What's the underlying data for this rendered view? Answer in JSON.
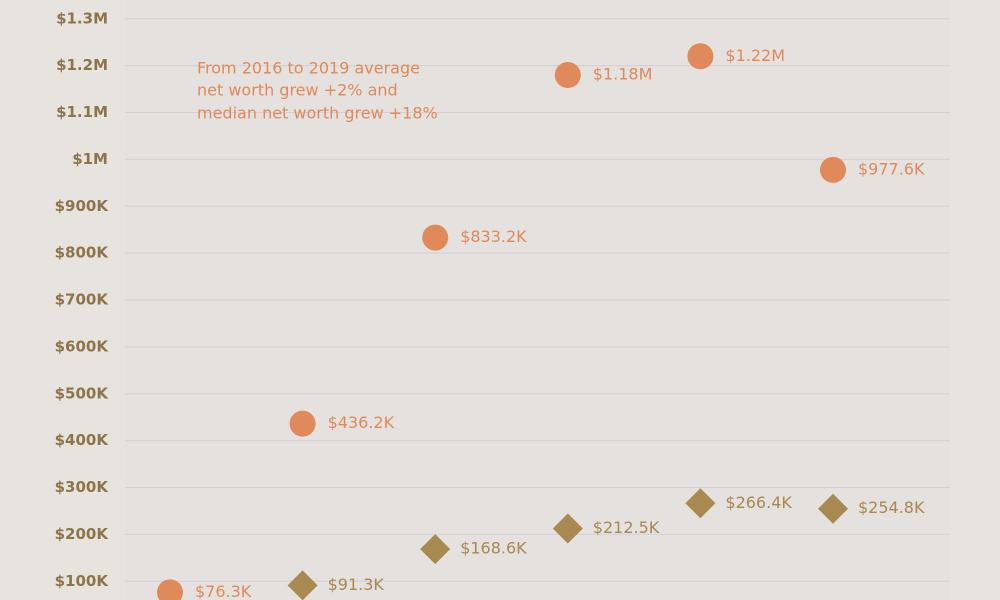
{
  "chart_data": {
    "type": "dumbbell",
    "annotation": [
      "From 2016 to 2019 average",
      "net worth grew +2% and",
      "median net worth grew +18%"
    ],
    "categories": [
      null,
      null,
      null,
      null,
      null,
      null
    ],
    "series": [
      {
        "color": "#e0895a",
        "values": [
          76300,
          436200,
          833200,
          1180000,
          1220000,
          977600
        ],
        "value_labels": [
          "$76.3K",
          "$436.2K",
          "$833.2K",
          "$1.18M",
          "$1.22M",
          "$977.6K"
        ]
      },
      {
        "color": "#a8894f",
        "values": [
          null,
          91300,
          168600,
          212500,
          266400,
          254800
        ],
        "value_labels": [
          null,
          "$91.3K",
          "$168.6K",
          "$212.5K",
          "$266.4K",
          "$254.8K"
        ]
      }
    ],
    "ylim": [
      60000,
      1340000
    ],
    "yticks": [
      {
        "value": 100000,
        "label": "$100K"
      },
      {
        "value": 200000,
        "label": "$200K"
      },
      {
        "value": 300000,
        "label": "$300K"
      },
      {
        "value": 400000,
        "label": "$400K"
      },
      {
        "value": 500000,
        "label": "$500K"
      },
      {
        "value": 600000,
        "label": "$600K"
      },
      {
        "value": 700000,
        "label": "$700K"
      },
      {
        "value": 800000,
        "label": "$800K"
      },
      {
        "value": 900000,
        "label": "$900K"
      },
      {
        "value": 1000000,
        "label": "$1M"
      },
      {
        "value": 1100000,
        "label": "$1.1M"
      },
      {
        "value": 1200000,
        "label": "$1.2M"
      },
      {
        "value": 1300000,
        "label": "$1.3M"
      }
    ],
    "grid": true
  }
}
